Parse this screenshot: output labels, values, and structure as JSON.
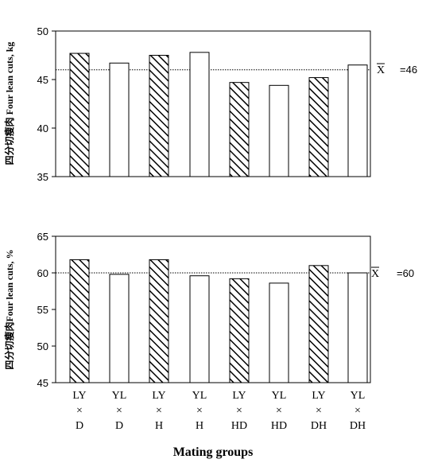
{
  "chart_data": [
    {
      "type": "bar",
      "ylabel": "四分切瘦肉 Four lean cuts, kg",
      "ylim": [
        35,
        50
      ],
      "yticks": [
        "35",
        "40",
        "45",
        "50"
      ],
      "categories": [
        "LY×D",
        "YL×D",
        "LY×H",
        "YL×H",
        "LY×HD",
        "YL×HD",
        "LY×DH",
        "YL×DH"
      ],
      "values": [
        47.7,
        46.7,
        47.5,
        47.8,
        44.7,
        44.4,
        45.2,
        46.5
      ],
      "patterns": [
        "hatched",
        "open",
        "hatched",
        "open",
        "hatched",
        "open",
        "hatched",
        "open"
      ],
      "mean": 46,
      "mean_symbol": "X",
      "mean_label": "=46"
    },
    {
      "type": "bar",
      "ylabel": "四分切瘦肉Four lean cuts, %",
      "ylim": [
        45,
        65
      ],
      "yticks": [
        "45",
        "50",
        "55",
        "60",
        "65"
      ],
      "categories": [
        "LY×D",
        "YL×D",
        "LY×H",
        "YL×H",
        "LY×HD",
        "YL×HD",
        "LY×DH",
        "YL×DH"
      ],
      "values": [
        61.8,
        59.8,
        61.8,
        59.6,
        59.2,
        58.6,
        61.0,
        60.0
      ],
      "patterns": [
        "hatched",
        "open",
        "hatched",
        "open",
        "hatched",
        "open",
        "hatched",
        "open"
      ],
      "mean": 60,
      "mean_symbol": "X",
      "mean_label": "=60"
    }
  ],
  "x_categories": [
    {
      "top": "LY",
      "cross": "×",
      "bottom": "D"
    },
    {
      "top": "YL",
      "cross": "×",
      "bottom": "D"
    },
    {
      "top": "LY",
      "cross": "×",
      "bottom": "H"
    },
    {
      "top": "YL",
      "cross": "×",
      "bottom": "H"
    },
    {
      "top": "LY",
      "cross": "×",
      "bottom": "HD"
    },
    {
      "top": "YL",
      "cross": "×",
      "bottom": "HD"
    },
    {
      "top": "LY",
      "cross": "×",
      "bottom": "DH"
    },
    {
      "top": "YL",
      "cross": "×",
      "bottom": "DH"
    }
  ],
  "xlabel": "Mating groups"
}
